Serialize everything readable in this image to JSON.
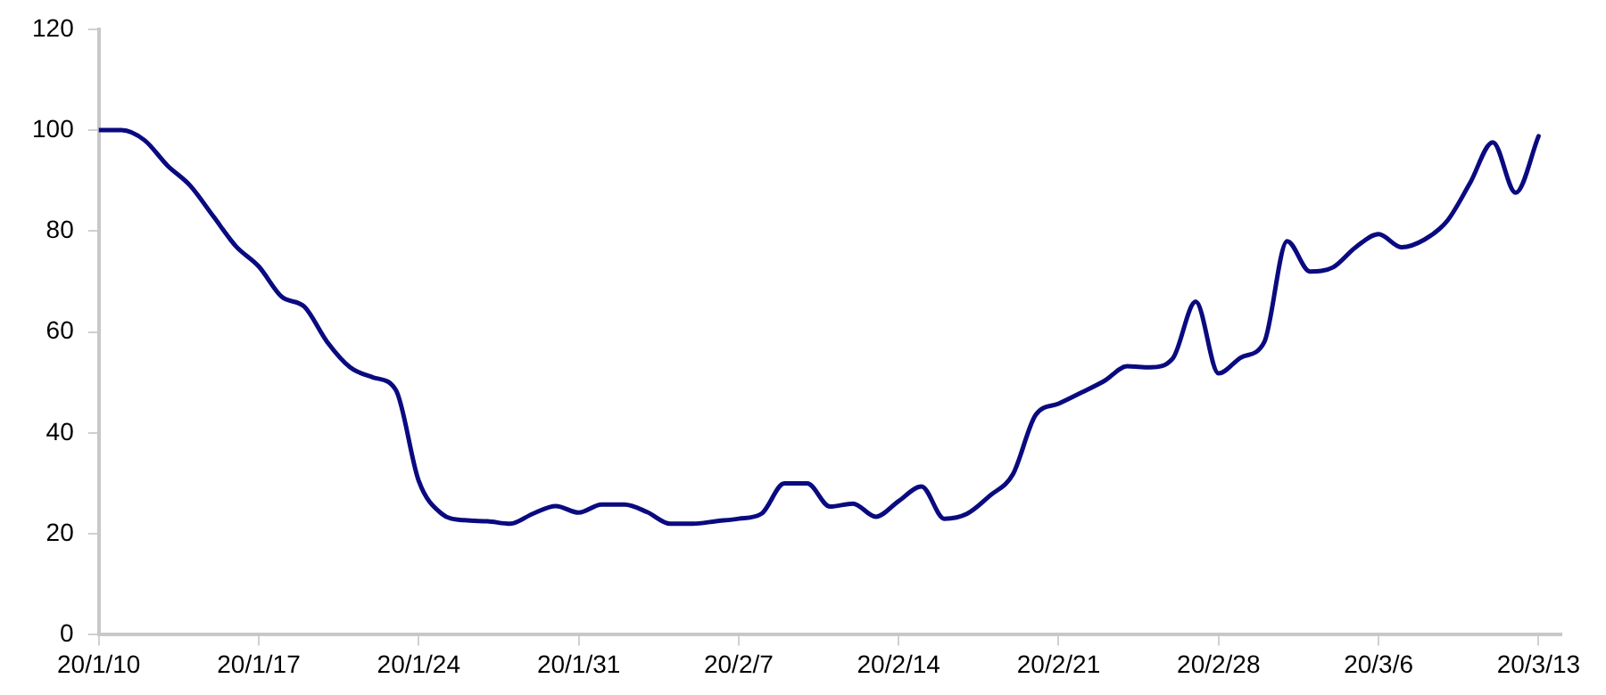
{
  "chart_data": {
    "type": "line",
    "x": [
      "--01-10",
      "--01-11",
      "--01-12",
      "--01-13",
      "--01-14",
      "--01-15",
      "--01-16",
      "--01-17",
      "--01-18",
      "--01-19",
      "--01-20",
      "--01-21",
      "--01-22",
      "--01-23",
      "--01-24",
      "--01-25",
      "--01-26",
      "--01-27",
      "--01-28",
      "--01-29",
      "--01-30",
      "--01-31",
      "--02-01",
      "--02-02",
      "--02-03",
      "--02-04",
      "--02-05",
      "--02-06",
      "--02-07",
      "--02-08",
      "--02-09",
      "--02-10",
      "--02-11",
      "--02-12",
      "--02-13",
      "--02-14",
      "--02-15",
      "--02-16",
      "--02-17",
      "--02-18",
      "--02-19",
      "--02-20",
      "--02-21",
      "--02-22",
      "--02-23",
      "--02-24",
      "--02-25",
      "--02-26",
      "--02-27",
      "--02-28",
      "--02-29",
      "--03-01",
      "--03-02",
      "--03-03",
      "--03-04",
      "--03-05",
      "--03-06",
      "--03-07",
      "--03-08",
      "--03-09",
      "--03-10",
      "--03-11",
      "--03-12",
      "--03-13"
    ],
    "series": [
      {
        "color": "#0a0a80",
        "values": [
          100,
          100,
          98,
          93,
          89,
          83,
          77,
          73,
          67,
          65,
          58,
          53,
          51,
          48.5,
          30.5,
          24,
          22.7,
          22.5,
          22,
          24,
          25.5,
          24.2,
          25.8,
          25.8,
          24.3,
          22,
          22,
          22.5,
          23,
          24,
          30,
          30,
          25.4,
          26,
          23.4,
          26.5,
          29.4,
          23,
          24,
          27.6,
          31.8,
          43.6,
          45.8,
          48,
          50.3,
          53.2,
          53,
          54.8,
          66,
          51.8,
          55,
          58,
          78,
          72,
          72.8,
          76.8,
          79.4,
          76.8,
          78.3,
          82,
          89.5,
          97.6,
          87.6,
          98.8
        ]
      }
    ],
    "xlim": [
      "--01-10",
      "--03-14"
    ],
    "xticks": [
      {
        "value": "--01-10",
        "label": "20/1/10"
      },
      {
        "value": "--01-17",
        "label": "20/1/17"
      },
      {
        "value": "--01-24",
        "label": "20/1/24"
      },
      {
        "value": "--01-31",
        "label": "20/1/31"
      },
      {
        "value": "--02-07",
        "label": "20/2/7"
      },
      {
        "value": "--02-14",
        "label": "20/2/14"
      },
      {
        "value": "--02-21",
        "label": "20/2/21"
      },
      {
        "value": "--02-28",
        "label": "20/2/28"
      },
      {
        "value": "--03-06",
        "label": "20/3/6"
      },
      {
        "value": "--03-13",
        "label": "20/3/13"
      }
    ],
    "ylim": [
      0,
      120
    ],
    "yticks": [
      0,
      20,
      40,
      60,
      80,
      100,
      120
    ],
    "grid": false,
    "legend": false,
    "marker": "none",
    "line_style": "solid"
  }
}
